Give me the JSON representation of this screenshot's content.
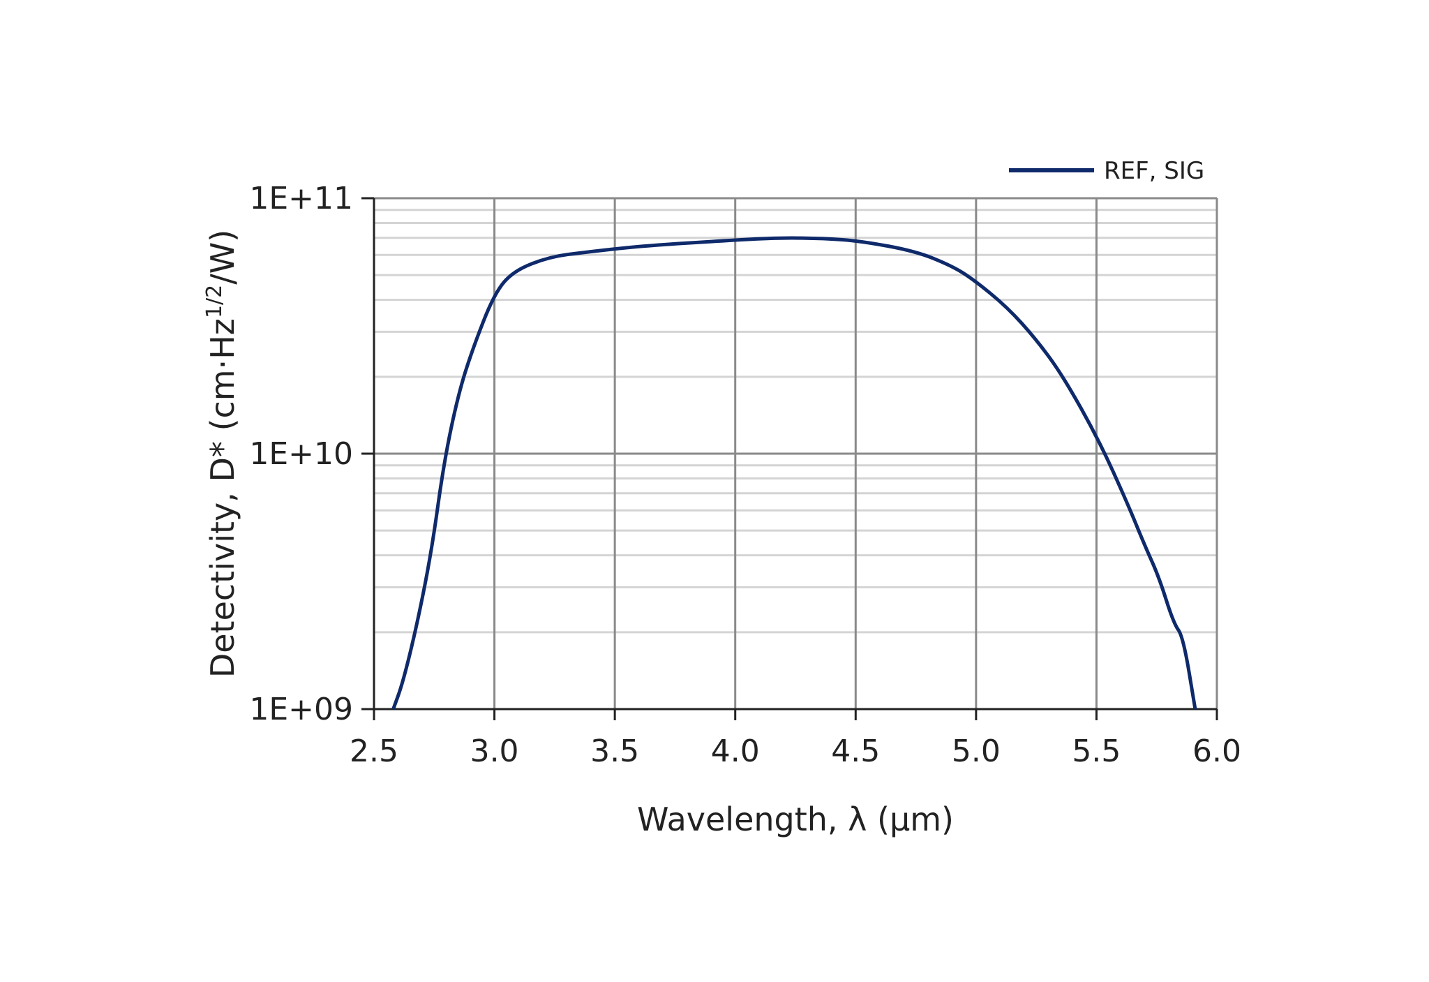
{
  "chart_data": {
    "type": "line",
    "title": "",
    "xlabel": "Wavelength, λ (µm)",
    "ylabel_main": "Detectivity, D* (cm·Hz",
    "ylabel_sup": "1/2",
    "ylabel_end": "/W)",
    "xlim": [
      2.5,
      6.0
    ],
    "ylim": [
      1000000000.0,
      100000000000.0
    ],
    "yscale": "log",
    "grid": true,
    "legend_position": "top-right",
    "xticks": [
      "2.5",
      "3.0",
      "3.5",
      "4.0",
      "4.5",
      "5.0",
      "5.5",
      "6.0"
    ],
    "yticks": [
      "1E+09",
      "1E+10",
      "1E+11"
    ],
    "series": [
      {
        "name": "REF, SIG",
        "color": "#0f2a6b",
        "x": [
          2.58,
          2.62,
          2.68,
          2.74,
          2.79,
          2.85,
          2.91,
          3.0,
          3.08,
          3.23,
          3.38,
          3.61,
          3.99,
          4.18,
          4.37,
          4.52,
          4.75,
          4.9,
          4.99,
          5.13,
          5.25,
          5.36,
          5.51,
          5.63,
          5.7,
          5.76,
          5.82,
          5.86,
          5.91
        ],
        "y": [
          1000000000.0,
          1270000000.0,
          2170000000.0,
          4200000000.0,
          9200000000.0,
          17100000000.0,
          25800000000.0,
          42400000000.0,
          52000000000.0,
          59000000000.0,
          61500000000.0,
          65000000000.0,
          68500000000.0,
          70000000000.0,
          69600000000.0,
          68000000000.0,
          62000000000.0,
          54300000000.0,
          48000000000.0,
          37400000000.0,
          28000000000.0,
          20200000000.0,
          11300000000.0,
          6350000000.0,
          4380000000.0,
          3280000000.0,
          2170000000.0,
          1920000000.0,
          1000000000.0
        ]
      }
    ]
  }
}
